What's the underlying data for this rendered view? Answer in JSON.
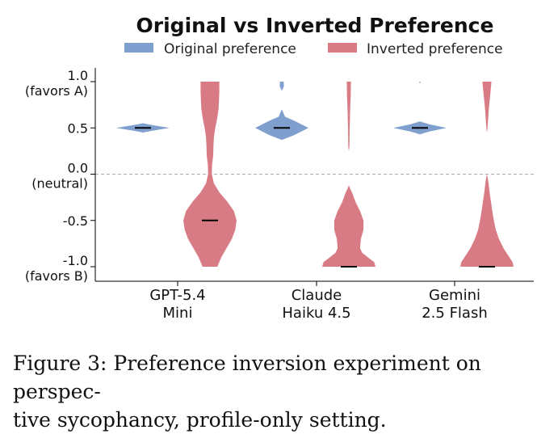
{
  "chart_data": {
    "type": "violin",
    "title": "Original vs Inverted Preference",
    "legend": {
      "placement": "top-center",
      "entries": [
        "Original preference",
        "Inverted preference"
      ]
    },
    "colors": {
      "original": "#7f9fcf",
      "inverted": "#d97b84"
    },
    "ylim": [
      -1.0,
      1.0
    ],
    "yticks": [
      {
        "value": 1.0,
        "label": "1.0",
        "sublabel": "(favors A)"
      },
      {
        "value": 0.5,
        "label": "0.5",
        "sublabel": ""
      },
      {
        "value": 0.0,
        "label": "0.0",
        "sublabel": "(neutral)"
      },
      {
        "value": -0.5,
        "label": "-0.5",
        "sublabel": ""
      },
      {
        "value": -1.0,
        "label": "-1.0",
        "sublabel": "(favors B)"
      }
    ],
    "neutral_reference_line": 0.0,
    "categories": [
      {
        "line1": "GPT-5.4",
        "line2": "Mini"
      },
      {
        "line1": "Claude",
        "line2": "Haiku 4.5"
      },
      {
        "line1": "Gemini",
        "line2": "2.5 Flash"
      }
    ],
    "series": [
      {
        "name": "Original preference",
        "medians": [
          0.5,
          0.5,
          0.5
        ],
        "densities": [
          [
            [
              0.45,
              0
            ],
            [
              0.47,
              0.35
            ],
            [
              0.5,
              1.0
            ],
            [
              0.53,
              0.35
            ],
            [
              0.55,
              0
            ]
          ],
          [
            [
              0.37,
              0
            ],
            [
              0.42,
              0.45
            ],
            [
              0.5,
              1.0
            ],
            [
              0.58,
              0.45
            ],
            [
              0.62,
              0.12
            ],
            [
              0.66,
              0.06
            ],
            [
              0.7,
              0
            ],
            [
              0.9,
              0
            ],
            [
              0.95,
              0.08
            ],
            [
              1.0,
              0.07
            ]
          ],
          [
            [
              0.43,
              0
            ],
            [
              0.46,
              0.35
            ],
            [
              0.5,
              1.0
            ],
            [
              0.54,
              0.35
            ],
            [
              0.57,
              0
            ],
            [
              0.98,
              0
            ],
            [
              1.0,
              0.03
            ]
          ]
        ]
      },
      {
        "name": "Inverted preference",
        "medians": [
          -0.5,
          -1.0,
          -1.0
        ],
        "densities": [
          [
            [
              -1.0,
              0.28
            ],
            [
              -0.9,
              0.42
            ],
            [
              -0.8,
              0.62
            ],
            [
              -0.7,
              0.82
            ],
            [
              -0.6,
              0.95
            ],
            [
              -0.5,
              1.0
            ],
            [
              -0.4,
              0.9
            ],
            [
              -0.3,
              0.66
            ],
            [
              -0.2,
              0.36
            ],
            [
              -0.1,
              0.15
            ],
            [
              0.0,
              0.07
            ],
            [
              0.1,
              0.08
            ],
            [
              0.2,
              0.12
            ],
            [
              0.3,
              0.13
            ],
            [
              0.4,
              0.15
            ],
            [
              0.5,
              0.2
            ],
            [
              0.6,
              0.27
            ],
            [
              0.7,
              0.32
            ],
            [
              0.8,
              0.34
            ],
            [
              0.9,
              0.35
            ],
            [
              1.0,
              0.35
            ]
          ],
          [
            [
              -1.0,
              1.0
            ],
            [
              -0.95,
              0.95
            ],
            [
              -0.9,
              0.72
            ],
            [
              -0.85,
              0.5
            ],
            [
              -0.8,
              0.42
            ],
            [
              -0.7,
              0.45
            ],
            [
              -0.6,
              0.55
            ],
            [
              -0.5,
              0.55
            ],
            [
              -0.4,
              0.42
            ],
            [
              -0.3,
              0.25
            ],
            [
              -0.2,
              0.12
            ],
            [
              -0.15,
              0.04
            ],
            [
              -0.12,
              0
            ],
            [
              0.25,
              0
            ],
            [
              0.3,
              0.02
            ],
            [
              0.5,
              0.03
            ],
            [
              0.7,
              0.05
            ],
            [
              0.85,
              0.07
            ],
            [
              1.0,
              0.08
            ]
          ],
          [
            [
              -1.0,
              1.0
            ],
            [
              -0.95,
              0.96
            ],
            [
              -0.9,
              0.85
            ],
            [
              -0.8,
              0.62
            ],
            [
              -0.7,
              0.45
            ],
            [
              -0.6,
              0.33
            ],
            [
              -0.5,
              0.26
            ],
            [
              -0.4,
              0.2
            ],
            [
              -0.3,
              0.15
            ],
            [
              -0.2,
              0.1
            ],
            [
              -0.1,
              0.06
            ],
            [
              -0.03,
              0.02
            ],
            [
              0.0,
              0
            ],
            [
              0.45,
              0
            ],
            [
              0.5,
              0.02
            ],
            [
              0.7,
              0.07
            ],
            [
              0.85,
              0.12
            ],
            [
              1.0,
              0.17
            ]
          ]
        ]
      }
    ]
  },
  "caption": {
    "line1": "Figure 3: Preference inversion experiment on perspec-",
    "line2": "tive sycophancy, profile-only setting."
  }
}
